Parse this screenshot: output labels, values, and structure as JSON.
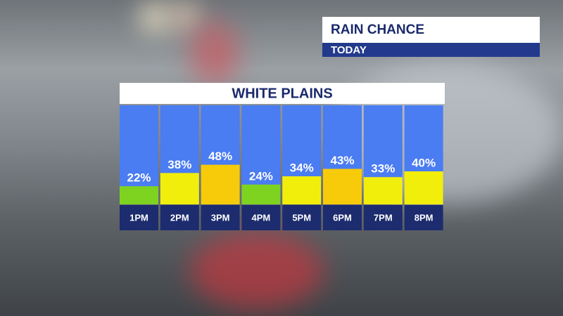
{
  "chart_data": {
    "type": "bar",
    "title": "RAIN CHANCE",
    "subtitle": "TODAY",
    "chart_title": "WHITE PLAINS",
    "categories": [
      "1PM",
      "2PM",
      "3PM",
      "4PM",
      "5PM",
      "6PM",
      "7PM",
      "8PM"
    ],
    "values": [
      22,
      38,
      48,
      24,
      34,
      43,
      33,
      40
    ],
    "value_labels": [
      "22%",
      "38%",
      "48%",
      "24%",
      "34%",
      "43%",
      "33%",
      "40%"
    ],
    "colors": [
      "#7ed321",
      "#f2ee0c",
      "#f7cb0a",
      "#7ed321",
      "#f2ee0c",
      "#f7cb0a",
      "#f2ee0c",
      "#f2ee0c"
    ],
    "ylim": [
      0,
      120
    ]
  }
}
